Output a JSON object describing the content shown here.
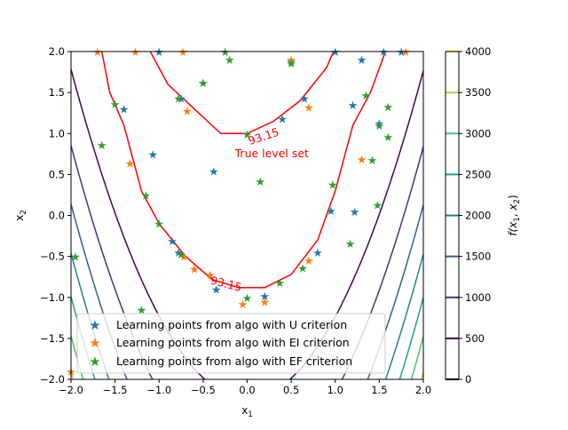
{
  "chart_data": {
    "type": "scatter",
    "subtype": "contour",
    "title": "",
    "xlabel": "x",
    "xlabel_sub": "1",
    "ylabel": "x",
    "ylabel_sub": "2",
    "xlim": [
      -2,
      2
    ],
    "ylim": [
      -2,
      2
    ],
    "x_ticks": [
      -2.0,
      -1.5,
      -1.0,
      -0.5,
      0.0,
      0.5,
      1.0,
      1.5,
      2.0
    ],
    "x_tick_labels": [
      "−2.0",
      "−1.5",
      "−1.0",
      "−0.5",
      "0.0",
      "0.5",
      "1.0",
      "1.5",
      "2.0"
    ],
    "y_ticks": [
      -2.0,
      -1.5,
      -1.0,
      -0.5,
      0.0,
      0.5,
      1.0,
      1.5,
      2.0
    ],
    "y_tick_labels": [
      "−2.0",
      "−1.5",
      "−1.0",
      "−0.5",
      "0.0",
      "0.5",
      "1.0",
      "1.5",
      "2.0"
    ],
    "grid": false,
    "legend_position": "lower-center",
    "colorbar": {
      "label": "f(x1, x2)",
      "label_prefix": "f(",
      "label_x": "x",
      "label_s1": "1",
      "label_sep": ", ",
      "label_s2": "2",
      "label_suffix": ")",
      "range": [
        0,
        4000
      ],
      "ticks": [
        0,
        500,
        1000,
        1500,
        2000,
        2500,
        3000,
        3500,
        4000
      ],
      "tick_labels": [
        "0",
        "500",
        "1000",
        "1500",
        "2000",
        "2500",
        "3000",
        "3500",
        "4000"
      ],
      "level_colors": [
        "#440154",
        "#46327e",
        "#365c8d",
        "#277f8e",
        "#1fa187",
        "#4ac16d",
        "#a0da39",
        "#fde725"
      ]
    },
    "contour_levels": [
      500,
      1000,
      1500,
      2000,
      2500,
      3000,
      3500,
      4000
    ],
    "true_level": {
      "value": 93.15,
      "label": "93.15",
      "color": "#ff0000",
      "annotation": "True level set",
      "upper_curve": [
        [
          -1.65,
          2.0
        ],
        [
          -1.56,
          1.5
        ],
        [
          -1.4,
          1.1
        ],
        [
          -1.2,
          0.3
        ],
        [
          -1.0,
          -0.1
        ],
        [
          -0.7,
          -0.5
        ],
        [
          -0.4,
          -0.78
        ],
        [
          -0.1,
          -0.88
        ],
        [
          0.2,
          -0.88
        ],
        [
          0.5,
          -0.72
        ],
        [
          0.8,
          -0.3
        ],
        [
          1.0,
          0.3
        ],
        [
          1.2,
          1.1
        ],
        [
          1.4,
          1.5
        ],
        [
          1.57,
          2.0
        ]
      ],
      "inner_curve": [
        [
          -1.1,
          2.0
        ],
        [
          -0.9,
          1.6
        ],
        [
          -0.6,
          1.3
        ],
        [
          -0.3,
          1.0
        ],
        [
          0.0,
          1.0
        ],
        [
          0.3,
          1.15
        ],
        [
          0.6,
          1.4
        ],
        [
          0.9,
          1.8
        ],
        [
          0.98,
          2.0
        ]
      ]
    },
    "series": [
      {
        "name": "Learning points from algo with U criterion",
        "color": "#1f77b4",
        "points": [
          [
            -1.0,
            2.0
          ],
          [
            -0.5,
            1.62
          ],
          [
            0.5,
            1.88
          ],
          [
            1.0,
            2.0
          ],
          [
            1.3,
            1.9
          ],
          [
            1.55,
            2.0
          ],
          [
            1.75,
            2.0
          ],
          [
            -1.4,
            1.3
          ],
          [
            -0.75,
            1.43
          ],
          [
            0.65,
            1.43
          ],
          [
            1.2,
            1.35
          ],
          [
            0.4,
            1.18
          ],
          [
            1.5,
            1.13
          ],
          [
            -1.07,
            0.75
          ],
          [
            -0.38,
            0.54
          ],
          [
            0.95,
            0.06
          ],
          [
            1.22,
            0.05
          ],
          [
            -0.85,
            -0.31
          ],
          [
            -0.78,
            -0.45
          ],
          [
            0.8,
            -0.45
          ],
          [
            -0.35,
            -0.9
          ],
          [
            0.2,
            -0.98
          ]
        ]
      },
      {
        "name": "Learning points from algo with EI criterion",
        "color": "#ff7f0e",
        "points": [
          [
            -2.0,
            -1.9
          ],
          [
            -1.7,
            2.0
          ],
          [
            -1.27,
            2.0
          ],
          [
            -0.73,
            2.0
          ],
          [
            0.5,
            1.9
          ],
          [
            1.8,
            2.0
          ],
          [
            -0.68,
            1.28
          ],
          [
            0.7,
            1.32
          ],
          [
            -1.33,
            0.64
          ],
          [
            1.3,
            0.69
          ],
          [
            -0.6,
            -0.65
          ],
          [
            -0.72,
            -0.5
          ],
          [
            -0.42,
            -0.72
          ],
          [
            -0.05,
            -1.08
          ],
          [
            0.2,
            -1.05
          ],
          [
            0.7,
            -0.55
          ]
        ]
      },
      {
        "name": "Learning points from algo with EF criterion",
        "color": "#2ca02c",
        "points": [
          [
            -1.65,
            0.86
          ],
          [
            -1.5,
            1.36
          ],
          [
            -0.78,
            1.43
          ],
          [
            -0.5,
            1.62
          ],
          [
            -0.2,
            1.9
          ],
          [
            0.5,
            1.86
          ],
          [
            -1.95,
            -0.5
          ],
          [
            -1.15,
            0.25
          ],
          [
            -1.0,
            -0.1
          ],
          [
            -1.2,
            -1.15
          ],
          [
            0.0,
            0.99
          ],
          [
            0.15,
            0.42
          ],
          [
            0.97,
            0.38
          ],
          [
            1.35,
            1.47
          ],
          [
            1.6,
            1.33
          ],
          [
            1.5,
            1.1
          ],
          [
            1.6,
            0.96
          ],
          [
            1.42,
            0.68
          ],
          [
            1.48,
            0.13
          ],
          [
            1.17,
            -0.34
          ],
          [
            0.63,
            -0.64
          ],
          [
            0.37,
            -0.82
          ],
          [
            0.0,
            -1.0
          ],
          [
            -0.25,
            2.0
          ],
          [
            -0.75,
            -0.47
          ]
        ]
      }
    ]
  }
}
